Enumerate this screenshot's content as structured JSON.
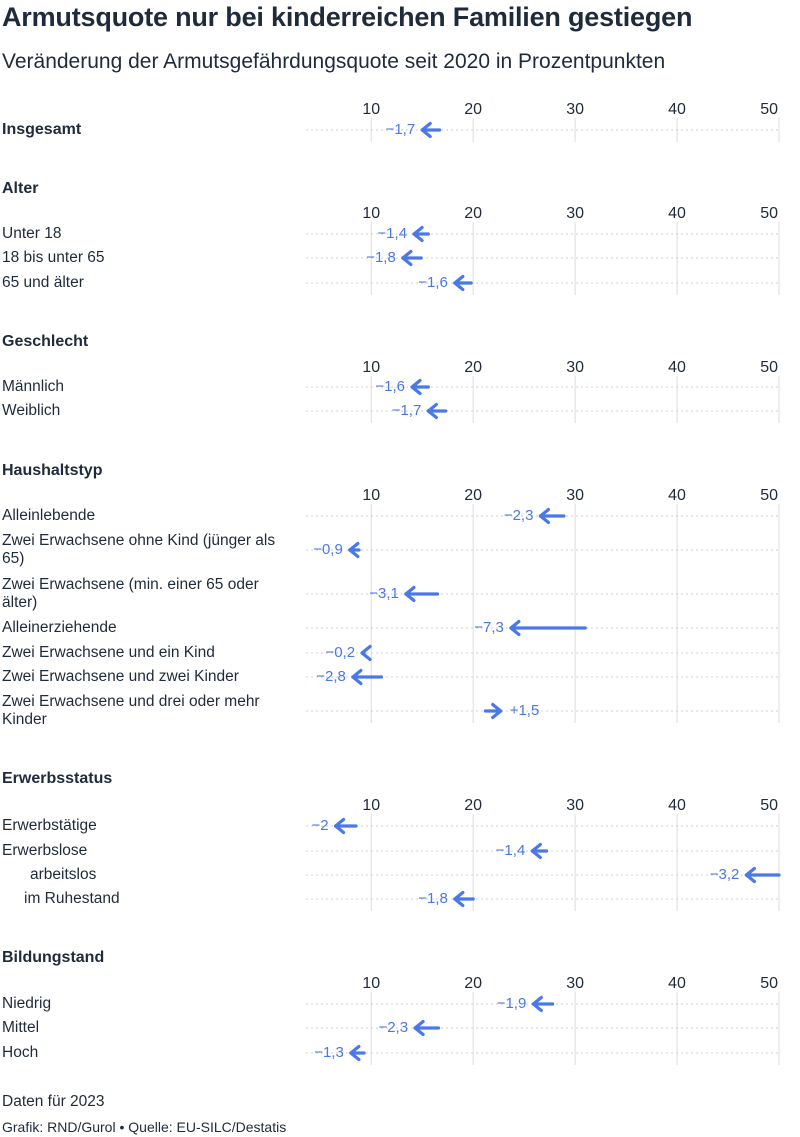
{
  "title": "Armutsquote nur bei kinderreichen Familien gestiegen",
  "subtitle": "Veränderung der Armutsgefährdungsquote seit 2020 in Prozentpunkten",
  "note": "Daten für 2023",
  "footer": {
    "credit": "Grafik: RND/Gurol",
    "separator": "•",
    "source": "Quelle: EU-SILC/Destatis"
  },
  "colors": {
    "accent": "#4a78e6",
    "text": "#1f2a3a",
    "grid": "#dddddd"
  },
  "chart_data": {
    "type": "arrow",
    "xlim": [
      3.6,
      50
    ],
    "ticks": [
      10,
      20,
      30,
      40,
      50
    ],
    "tick_labels": [
      "10",
      "20",
      "30",
      "40",
      "50"
    ],
    "sections": [
      {
        "title": "",
        "rows": [
          {
            "label": "Insgesamt",
            "label_bold": true,
            "start": 16.7,
            "end": 15.0,
            "change": "−1,7"
          }
        ]
      },
      {
        "title": "Alter",
        "rows": [
          {
            "label": "Unter 18",
            "start": 15.6,
            "end": 14.2,
            "change": "−1,4"
          },
          {
            "label": "18 bis unter 65",
            "start": 14.9,
            "end": 13.1,
            "change": "−1,8"
          },
          {
            "label": "65 und älter",
            "start": 19.8,
            "end": 18.2,
            "change": "−1,6"
          }
        ]
      },
      {
        "title": "Geschlecht",
        "rows": [
          {
            "label": "Männlich",
            "start": 15.6,
            "end": 14.0,
            "change": "−1,6"
          },
          {
            "label": "Weiblich",
            "start": 17.3,
            "end": 15.6,
            "change": "−1,7"
          }
        ]
      },
      {
        "title": "Haushaltstyp",
        "rows": [
          {
            "label": "Alleinlebende",
            "start": 28.9,
            "end": 26.6,
            "change": "−2,3"
          },
          {
            "label": "Zwei Erwachsene ohne Kind (jünger als 65)",
            "start": 8.8,
            "end": 7.9,
            "change": "−0,9"
          },
          {
            "label": "Zwei Erwachsene (min. einer 65 oder älter)",
            "start": 16.5,
            "end": 13.4,
            "change": "−3,1"
          },
          {
            "label": "Alleinerziehende",
            "start": 31.0,
            "end": 23.7,
            "change": "−7,3"
          },
          {
            "label": "Zwei Erwachsene und ein Kind",
            "start": 9.3,
            "end": 9.1,
            "change": "−0,2"
          },
          {
            "label": "Zwei Erwachsene und zwei Kinder",
            "start": 11.0,
            "end": 8.2,
            "change": "−2,8"
          },
          {
            "label": "Zwei Erwachsene und drei oder mehr Kinder",
            "start": 21.2,
            "end": 22.7,
            "change": "+1,5"
          }
        ]
      },
      {
        "title": "Erwerbsstatus",
        "rows": [
          {
            "label": "Erwerbstätige",
            "start": 8.5,
            "end": 6.5,
            "change": "−2"
          },
          {
            "label": "Erwerbslose",
            "start": 27.2,
            "end": 25.8,
            "change": "−1,4"
          },
          {
            "label": "arbeitslos",
            "indent": 2,
            "start": 50.0,
            "end": 46.8,
            "change": "−3,2"
          },
          {
            "label": "im Ruhestand",
            "indent": 1,
            "start": 20.0,
            "end": 18.2,
            "change": "−1,8"
          }
        ]
      },
      {
        "title": "Bildungstand",
        "rows": [
          {
            "label": "Niedrig",
            "start": 27.8,
            "end": 25.9,
            "change": "−1,9"
          },
          {
            "label": "Mittel",
            "start": 16.6,
            "end": 14.3,
            "change": "−2,3"
          },
          {
            "label": "Hoch",
            "start": 9.3,
            "end": 8.0,
            "change": "−1,3"
          }
        ]
      }
    ]
  }
}
